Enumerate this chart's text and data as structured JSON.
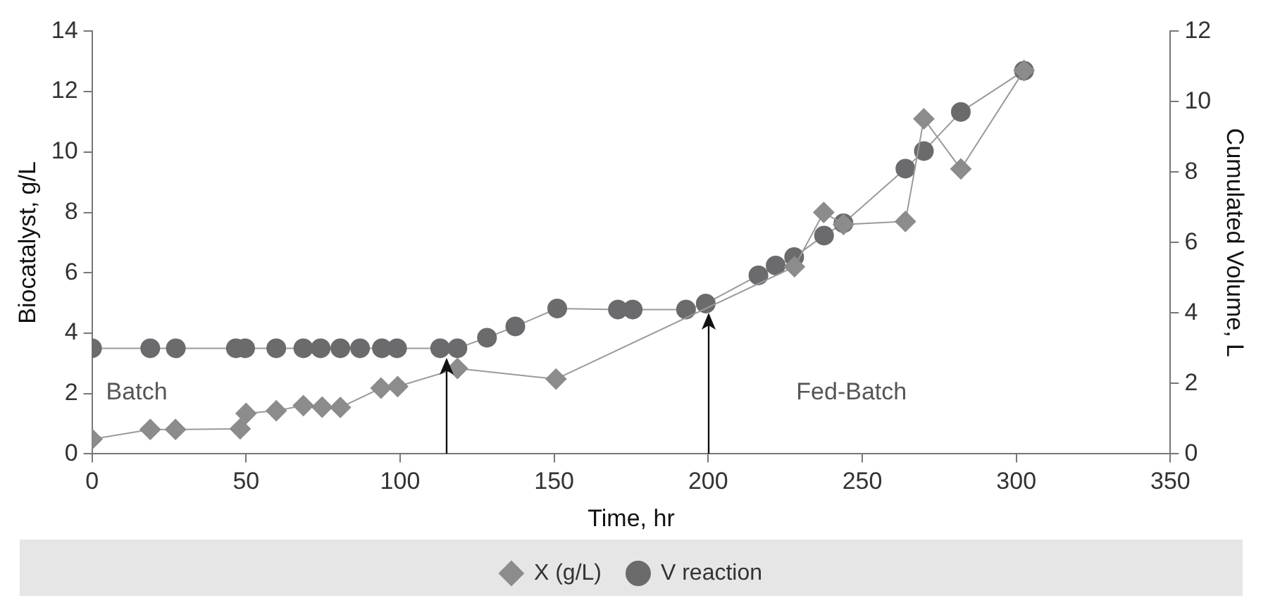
{
  "chart_data": {
    "type": "line",
    "xlabel": "Time, hr",
    "ylabel": "Biocatalyst, g/L",
    "y2label": "Cumulated Volume, L",
    "xlim": [
      0,
      350
    ],
    "xticks": [
      0,
      50,
      100,
      150,
      200,
      250,
      300,
      350
    ],
    "ylim": [
      0,
      14
    ],
    "yticks": [
      0,
      2,
      4,
      6,
      8,
      10,
      12,
      14
    ],
    "y2lim": [
      0,
      12
    ],
    "y2ticks": [
      0,
      2,
      4,
      6,
      8,
      10,
      12
    ],
    "grid": false,
    "legend": "bottom",
    "annotations": [
      "Batch",
      "Fed-Batch"
    ],
    "ref_lines": [
      {
        "axis": "x",
        "value": 115
      },
      {
        "axis": "x",
        "value": 200
      }
    ],
    "series": [
      {
        "name": "X (g/L)",
        "color": "#8c8c8c",
        "marker": "diamond",
        "x": [
          0,
          18.9,
          27.1,
          48.1,
          50,
          59.8,
          68.6,
          74.7,
          80.6,
          93.8,
          99.2,
          118.6,
          150.6,
          228,
          237.5,
          243.9,
          264,
          270,
          282,
          302.5
        ],
        "values": [
          0.49,
          0.81,
          0.81,
          0.83,
          1.34,
          1.43,
          1.6,
          1.55,
          1.54,
          2.18,
          2.23,
          2.83,
          2.48,
          6.2,
          8.0,
          7.6,
          7.7,
          11.1,
          9.44,
          12.7
        ]
      },
      {
        "name": "V reaction",
        "color": "#6b6b6d",
        "marker": "circle",
        "axis": "y2",
        "x": [
          0,
          18.9,
          27.2,
          46.7,
          49.7,
          59.8,
          68.6,
          74.2,
          80.6,
          87,
          94.1,
          99,
          113,
          118.6,
          128.2,
          137.4,
          151,
          170.7,
          175.5,
          192.8,
          199.2,
          216.3,
          221.9,
          227.9,
          237.6,
          243.9,
          264,
          270,
          282,
          302.5
        ],
        "values": [
          3,
          3,
          3,
          3,
          3,
          3,
          3,
          3,
          3,
          3,
          3,
          3,
          3,
          3,
          3.3,
          3.62,
          4.13,
          4.1,
          4.1,
          4.1,
          4.27,
          5.07,
          5.35,
          5.59,
          6.2,
          6.55,
          8.1,
          8.6,
          9.71,
          10.88
        ]
      }
    ]
  }
}
